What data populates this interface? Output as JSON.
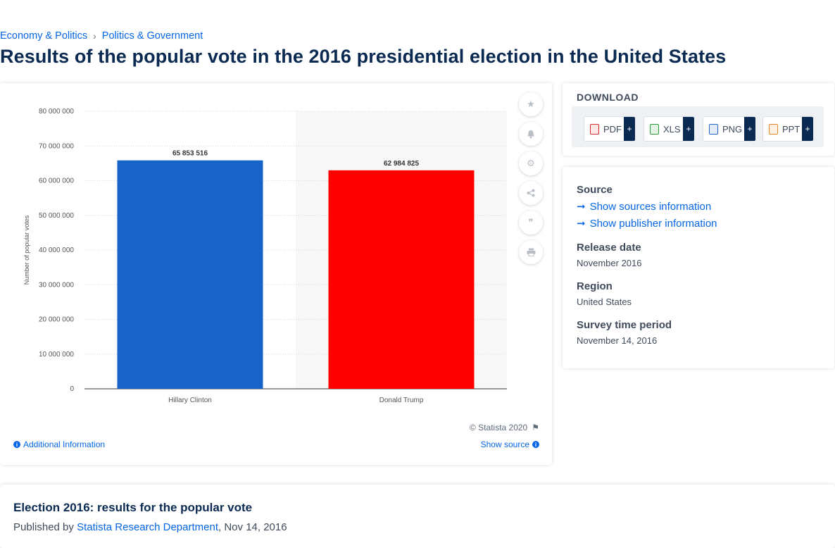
{
  "breadcrumb": {
    "items": [
      "Economy & Politics",
      "Politics & Government"
    ],
    "separator": "›"
  },
  "page_title": "Results of the popular vote in the 2016 presidential election in the United States",
  "chart_data": {
    "type": "bar",
    "categories": [
      "Hillary Clinton",
      "Donald Trump"
    ],
    "values": [
      65853516,
      62984825
    ],
    "value_labels": [
      "65 853 516",
      "62 984 825"
    ],
    "colors": [
      "#1763c9",
      "#ff0000"
    ],
    "title": "",
    "xlabel": "",
    "ylabel": "Number of popular votes",
    "ylim": [
      0,
      80000000
    ],
    "yticks": [
      0,
      10000000,
      20000000,
      30000000,
      40000000,
      50000000,
      60000000,
      70000000,
      80000000
    ],
    "ytick_labels": [
      "0",
      "10 000 000",
      "20 000 000",
      "30 000 000",
      "40 000 000",
      "50 000 000",
      "60 000 000",
      "70 000 000",
      "80 000 000"
    ],
    "grid": true,
    "legend": "none"
  },
  "chart_footer": {
    "copyright": "© Statista 2020",
    "additional_info": "Additional Information",
    "show_source": "Show source"
  },
  "tools": [
    "star-icon",
    "bell-icon",
    "gear-icon",
    "share-icon",
    "quote-icon",
    "print-icon"
  ],
  "download": {
    "title": "DOWNLOAD",
    "buttons": [
      {
        "label": "PDF",
        "icon": "pdf-file-icon",
        "color": "#d62b2b"
      },
      {
        "label": "XLS",
        "icon": "xls-file-icon",
        "color": "#2e9b3e"
      },
      {
        "label": "PNG",
        "icon": "png-file-icon",
        "color": "#2466c9"
      },
      {
        "label": "PPT",
        "icon": "ppt-file-icon",
        "color": "#e2872b"
      }
    ],
    "plus": "+"
  },
  "meta": {
    "source_label": "Source",
    "show_sources": "Show sources information",
    "show_publisher": "Show publisher information",
    "release_label": "Release date",
    "release_value": "November 2016",
    "region_label": "Region",
    "region_value": "United States",
    "survey_label": "Survey time period",
    "survey_value": "November 14, 2016"
  },
  "article": {
    "title": "Election 2016: results for the popular vote",
    "published_prefix": "Published by",
    "author": "Statista Research Department",
    "date": ", Nov 14, 2016"
  },
  "colors": {
    "link": "#0666e5",
    "title": "#0b2a52",
    "accent_dark": "#0b2a52"
  }
}
